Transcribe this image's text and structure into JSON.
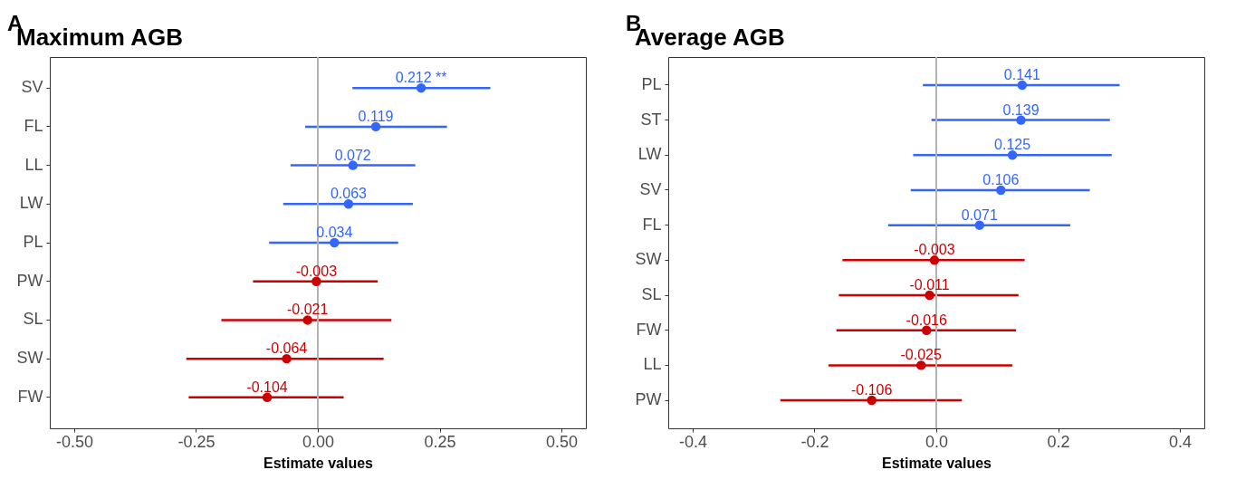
{
  "chart_data": [
    {
      "type": "scatter",
      "title": "Maximum AGB",
      "xlabel": "Estimate values",
      "annotations": [
        "A"
      ],
      "orientation": "horizontal",
      "grid": false,
      "legend": false,
      "marker": "circle",
      "categories": [
        "SV",
        "FL",
        "LL",
        "LW",
        "PL",
        "PW",
        "SL",
        "SW",
        "FW"
      ],
      "xlim": [
        -0.55,
        0.55
      ],
      "xticks": [
        {
          "value": -0.5,
          "label": "-0.50"
        },
        {
          "value": -0.25,
          "label": "-0.25"
        },
        {
          "value": 0,
          "label": "0.00"
        },
        {
          "value": 0.25,
          "label": "0.25"
        },
        {
          "value": 0.5,
          "label": "0.50"
        }
      ],
      "ref_lines": [
        {
          "axis": "x",
          "value": 0,
          "color": "#b3b3b3"
        }
      ],
      "series": [
        {
          "color": "#3366ff",
          "values": [
            0.212,
            0.119,
            0.072,
            0.063,
            0.034,
            null,
            null,
            null,
            null
          ],
          "errors": [
            [
              0.071,
              0.354
            ],
            [
              -0.026,
              0.265
            ],
            [
              -0.056,
              0.2
            ],
            [
              -0.071,
              0.195
            ],
            [
              -0.1,
              0.165
            ],
            null,
            null,
            null,
            null
          ],
          "value_labels": [
            "0.212 **",
            "0.119",
            "0.072",
            "0.063",
            "0.034",
            null,
            null,
            null,
            null
          ]
        },
        {
          "color": "#cc0000",
          "values": [
            null,
            null,
            null,
            null,
            null,
            -0.003,
            -0.021,
            -0.064,
            -0.104
          ],
          "errors": [
            null,
            null,
            null,
            null,
            null,
            [
              -0.133,
              0.123
            ],
            [
              -0.198,
              0.151
            ],
            [
              -0.27,
              0.135
            ],
            [
              -0.265,
              0.053
            ]
          ],
          "value_labels": [
            null,
            null,
            null,
            null,
            null,
            "-0.003",
            "-0.021",
            "-0.064",
            "-0.104"
          ]
        }
      ]
    },
    {
      "type": "scatter",
      "title": "Average AGB",
      "xlabel": "Estimate values",
      "annotations": [
        "B"
      ],
      "orientation": "horizontal",
      "grid": false,
      "legend": false,
      "marker": "circle",
      "categories": [
        "PL",
        "ST",
        "LW",
        "SV",
        "FL",
        "SW",
        "SL",
        "FW",
        "LL",
        "PW"
      ],
      "xlim": [
        -0.44,
        0.44
      ],
      "xticks": [
        -0.4,
        -0.2,
        {
          "value": 0,
          "label": "0.0"
        },
        0.2,
        0.4
      ],
      "ref_lines": [
        {
          "axis": "x",
          "value": 0,
          "color": "#b3b3b3"
        }
      ],
      "series": [
        {
          "color": "#3366ff",
          "values": [
            0.141,
            0.139,
            0.125,
            0.106,
            0.071,
            null,
            null,
            null,
            null,
            null
          ],
          "errors": [
            [
              -0.022,
              0.301
            ],
            [
              -0.008,
              0.285
            ],
            [
              -0.038,
              0.288
            ],
            [
              -0.042,
              0.252
            ],
            [
              -0.079,
              0.22
            ],
            null,
            null,
            null,
            null,
            null
          ],
          "value_labels": [
            "0.141",
            "0.139",
            "0.125",
            "0.106",
            "0.071",
            null,
            null,
            null,
            null,
            null
          ]
        },
        {
          "color": "#cc0000",
          "values": [
            null,
            null,
            null,
            null,
            null,
            -0.003,
            -0.011,
            -0.016,
            -0.025,
            -0.106
          ],
          "errors": [
            null,
            null,
            null,
            null,
            null,
            [
              -0.154,
              0.145
            ],
            [
              -0.16,
              0.135
            ],
            [
              -0.164,
              0.131
            ],
            [
              -0.177,
              0.125
            ],
            [
              -0.256,
              0.042
            ]
          ],
          "value_labels": [
            null,
            null,
            null,
            null,
            null,
            "-0.003",
            "-0.011",
            "-0.016",
            "-0.025",
            "-0.106"
          ]
        }
      ]
    }
  ]
}
